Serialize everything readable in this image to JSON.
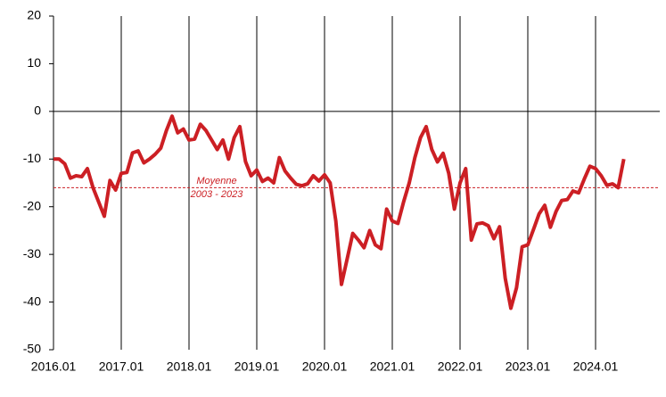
{
  "chart_data": {
    "type": "line",
    "categories": [
      "2016.01",
      null,
      null,
      null,
      null,
      null,
      null,
      null,
      null,
      null,
      null,
      null,
      "2017.01",
      null,
      null,
      null,
      null,
      null,
      null,
      null,
      null,
      null,
      null,
      null,
      "2018.01",
      null,
      null,
      null,
      null,
      null,
      null,
      null,
      null,
      null,
      null,
      null,
      "2019.01",
      null,
      null,
      null,
      null,
      null,
      null,
      null,
      null,
      null,
      null,
      null,
      "2020.01",
      null,
      null,
      null,
      null,
      null,
      null,
      null,
      null,
      null,
      null,
      null,
      "2021.01",
      null,
      null,
      null,
      null,
      null,
      null,
      null,
      null,
      null,
      null,
      null,
      "2022.01",
      null,
      null,
      null,
      null,
      null,
      null,
      null,
      null,
      null,
      null,
      null,
      "2023.01",
      null,
      null,
      null,
      null,
      null,
      null,
      null,
      null,
      null,
      null,
      null,
      "2024.01",
      null,
      null,
      null,
      null,
      null
    ],
    "series": [
      {
        "color": "#cc1f24",
        "values": [
          -10,
          -10,
          -11,
          -14,
          -13.5,
          -13.7,
          -12,
          -16,
          -19,
          -22,
          -14.5,
          -16.5,
          -13,
          -12.8,
          -8.7,
          -8.3,
          -10.8,
          -10,
          -9,
          -7.7,
          -4,
          -1,
          -4.5,
          -3.7,
          -6,
          -5.8,
          -2.7,
          -4,
          -6,
          -8,
          -6,
          -10,
          -5.5,
          -3.2,
          -10.5,
          -13.5,
          -12.3,
          -14.7,
          -14,
          -15,
          -9.7,
          -12.5,
          -14,
          -15.3,
          -15.6,
          -15.2,
          -13.5,
          -14.6,
          -13.3,
          -15,
          -23,
          -36.3,
          -31,
          -25.6,
          -27,
          -28.6,
          -25,
          -28,
          -28.8,
          -20.5,
          -23,
          -23.5,
          -19,
          -15,
          -9.7,
          -5.5,
          -3.2,
          -8,
          -10.6,
          -8.8,
          -13,
          -20.5,
          -15,
          -12,
          -27,
          -23.6,
          -23.4,
          -24,
          -26.7,
          -24.2,
          -35,
          -41.3,
          -37,
          -28.4,
          -28,
          -24.8,
          -21.5,
          -19.7,
          -24.3,
          -21,
          -18.7,
          -18.5,
          -16.7,
          -17.1,
          -14.2,
          -11.5,
          -12,
          -13.5,
          -15.5,
          -15.2,
          -16,
          -10
        ]
      }
    ],
    "reference_line": {
      "value": -16,
      "color": "#cc1f24",
      "label": [
        "Moyenne",
        "2003 - 2023"
      ]
    },
    "ylim": [
      -50,
      20
    ],
    "yticks": [
      20,
      10,
      0,
      -10,
      -20,
      -30,
      -40,
      -50
    ]
  }
}
